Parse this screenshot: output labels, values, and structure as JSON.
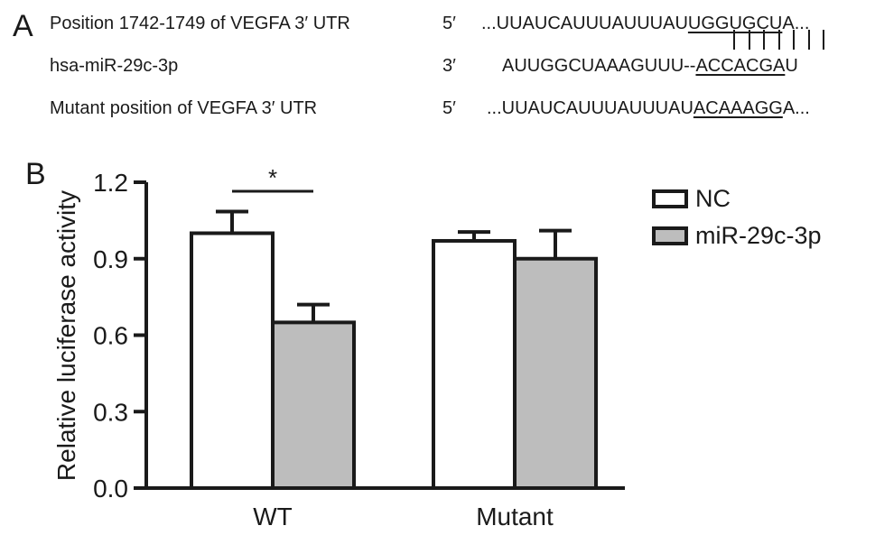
{
  "panels": {
    "a": "A",
    "b": "B"
  },
  "sequences": {
    "rows": [
      {
        "label": "Position 1742-1749 of VEGFA 3′ UTR",
        "end": "5′",
        "before": "...UUAUCAUUUAUUUAU",
        "site": "UGGUGCU",
        "after": "A..."
      },
      {
        "label": "hsa-miR-29c-3p",
        "end": "3′",
        "before": "AUUGGCUAAAGUUU--",
        "site": "ACCACGA",
        "after": "U"
      },
      {
        "label": "Mutant position of VEGFA 3′ UTR",
        "end": "5′",
        "before": "...UUAUCAUUUAUUUAU",
        "site": "ACAAAGG",
        "after": "A..."
      }
    ],
    "pair_count": 7
  },
  "chart_data": {
    "type": "bar",
    "categories": [
      "WT",
      "Mutant"
    ],
    "series": [
      {
        "name": "NC",
        "values": [
          1.0,
          0.97
        ],
        "errors": [
          0.085,
          0.035
        ],
        "color": "#ffffff"
      },
      {
        "name": "miR-29c-3p",
        "values": [
          0.65,
          0.9
        ],
        "errors": [
          0.07,
          0.11
        ],
        "color": "#bdbdbd"
      }
    ],
    "ylabel": "Relative luciferase activity",
    "ylim": [
      0,
      1.2
    ],
    "yticks": [
      "0.0",
      "0.3",
      "0.6",
      "0.9",
      "1.2"
    ],
    "ytick_values": [
      0,
      0.3,
      0.6,
      0.9,
      1.2
    ],
    "significance": [
      {
        "category": "WT",
        "label": "*"
      }
    ],
    "legend": "top-right",
    "grid": false
  }
}
